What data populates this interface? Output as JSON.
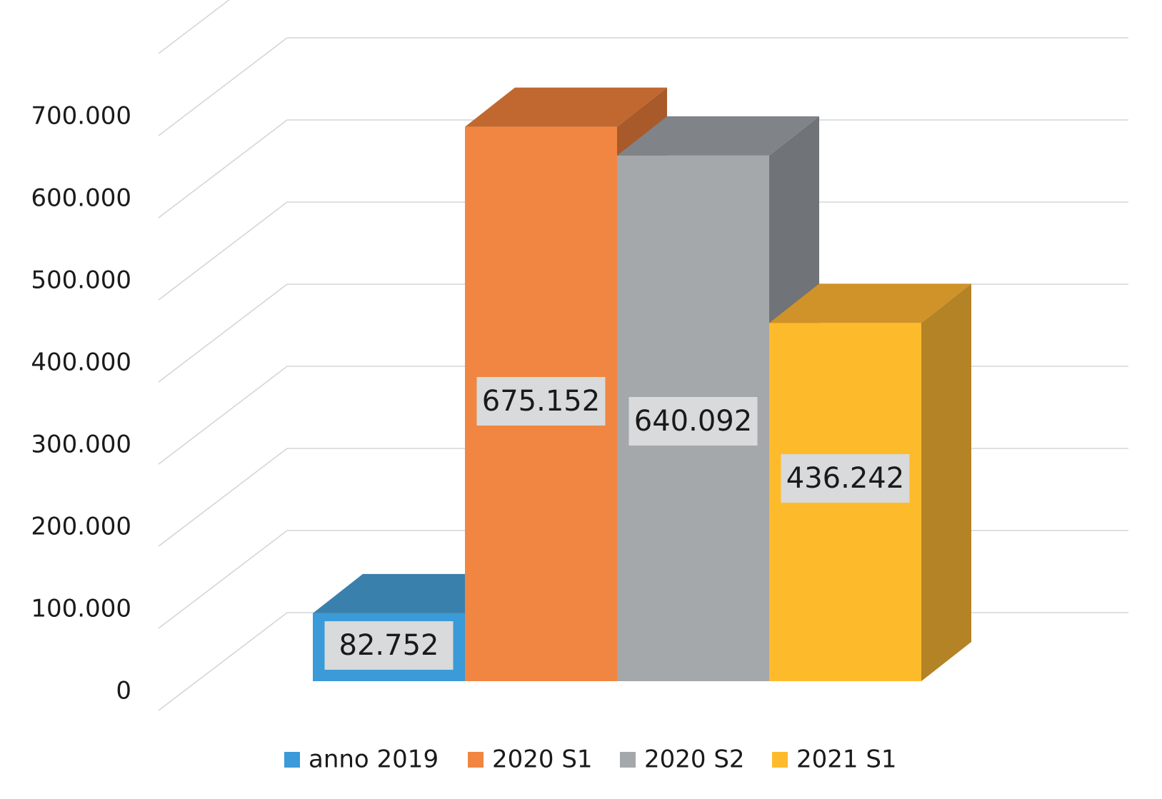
{
  "chart_data": {
    "type": "bar",
    "title": "",
    "xlabel": "",
    "ylabel": "",
    "ylim": [
      0,
      800000
    ],
    "yticks": [
      0,
      100000,
      200000,
      300000,
      400000,
      500000,
      600000,
      700000
    ],
    "ytick_labels": [
      "0",
      "100.000",
      "200.000",
      "300.000",
      "400.000",
      "500.000",
      "600.000",
      "700.000"
    ],
    "grid": true,
    "legend_position": "bottom",
    "three_d": true,
    "series": [
      {
        "name": "anno 2019",
        "value": 82752,
        "label": "82.752",
        "color": "#3b9ad8",
        "top_color": "#3a80ad",
        "side_color": "#2f6f98"
      },
      {
        "name": "2020 S1",
        "value": 675152,
        "label": "675.152",
        "color": "#f08641",
        "top_color": "#c0682f",
        "side_color": "#a85a2a"
      },
      {
        "name": "2020 S2",
        "value": 640092,
        "label": "640.092",
        "color": "#a5a8ab",
        "top_color": "#808387",
        "side_color": "#707377"
      },
      {
        "name": "2021 S1",
        "value": 436242,
        "label": "436.242",
        "color": "#fdbb2c",
        "top_color": "#cf9329",
        "side_color": "#b38325"
      }
    ],
    "label_box_color": "#d8dadb",
    "grid_color": "#d3d6d8"
  }
}
